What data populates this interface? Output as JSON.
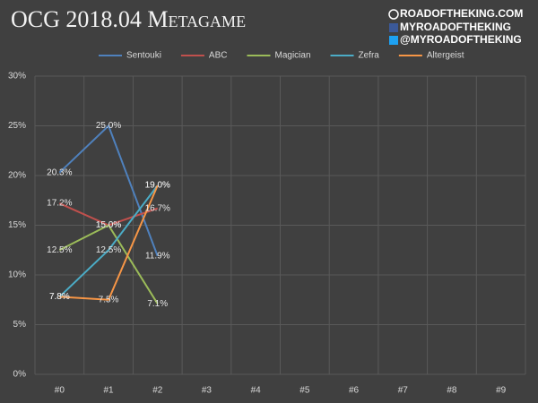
{
  "chart_data": {
    "type": "line",
    "title": "OCG 2018.04 Metagame",
    "watermark": [
      "ROADOFTHEKING.COM",
      "MYROADOFTHEKING",
      "@MYROADOFTHEKING"
    ],
    "categories": [
      "#0",
      "#1",
      "#2",
      "#3",
      "#4",
      "#5",
      "#6",
      "#7",
      "#8",
      "#9"
    ],
    "series": [
      {
        "name": "Sentouki",
        "color": "#4f81bd",
        "values": [
          20.3,
          25.0,
          11.9,
          null,
          null,
          null,
          null,
          null,
          null,
          null
        ],
        "value_labels": [
          "20.3%",
          "25.0%",
          "11.9%",
          null,
          null,
          null,
          null,
          null,
          null,
          null
        ]
      },
      {
        "name": "ABC",
        "color": "#c0504d",
        "values": [
          17.2,
          15.0,
          16.7,
          null,
          null,
          null,
          null,
          null,
          null,
          null
        ],
        "value_labels": [
          "17.2%",
          "15.0%",
          "16.7%",
          null,
          null,
          null,
          null,
          null,
          null,
          null
        ]
      },
      {
        "name": "Magician",
        "color": "#9bbb59",
        "values": [
          12.5,
          15.0,
          7.1,
          null,
          null,
          null,
          null,
          null,
          null,
          null
        ],
        "value_labels": [
          "12.5%",
          "15.0%",
          "7.1%",
          null,
          null,
          null,
          null,
          null,
          null,
          null
        ]
      },
      {
        "name": "Zefra",
        "color": "#4bacc6",
        "values": [
          7.8,
          12.5,
          19.0,
          null,
          null,
          null,
          null,
          null,
          null,
          null
        ],
        "value_labels": [
          "7.8%",
          "12.5%",
          "19.0%",
          null,
          null,
          null,
          null,
          null,
          null,
          null
        ]
      },
      {
        "name": "Altergeist",
        "color": "#f79646",
        "values": [
          7.8,
          7.5,
          19.0,
          null,
          null,
          null,
          null,
          null,
          null,
          null
        ],
        "value_labels": [
          "7.8%",
          "7.5%",
          "19.0%",
          null,
          null,
          null,
          null,
          null,
          null,
          null
        ]
      }
    ],
    "ylim": [
      0,
      30
    ],
    "yticks": [
      {
        "value": 0,
        "label": "0%"
      },
      {
        "value": 5,
        "label": "5%"
      },
      {
        "value": 10,
        "label": "10%"
      },
      {
        "value": 15,
        "label": "15%"
      },
      {
        "value": 20,
        "label": "20%"
      },
      {
        "value": 25,
        "label": "25%"
      },
      {
        "value": 30,
        "label": "30%"
      }
    ],
    "grid": true,
    "legend": "top"
  }
}
